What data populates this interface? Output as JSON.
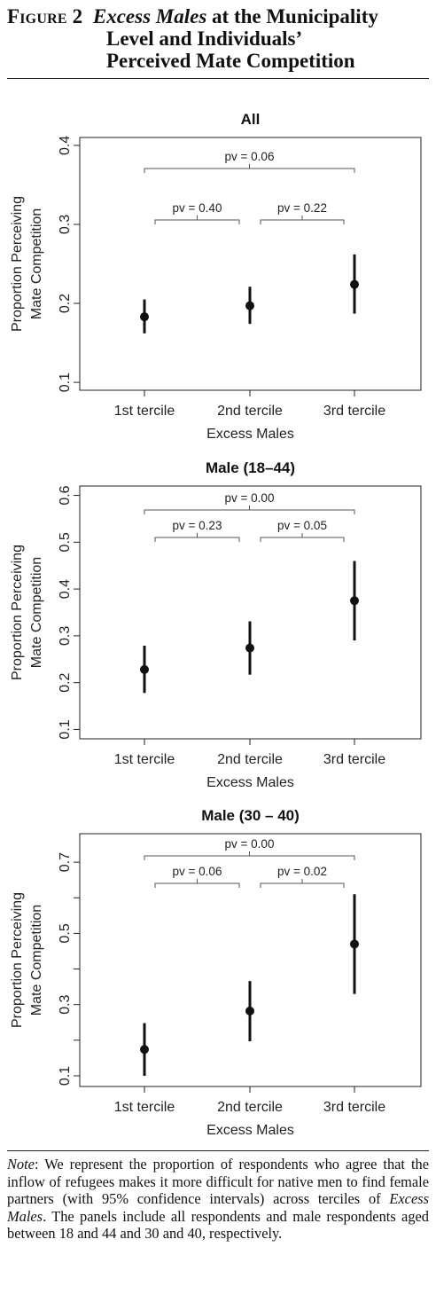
{
  "figure": {
    "number": "Figure 2",
    "title_italic": "Excess Males",
    "title_line1_rest": "at the Municipality",
    "title_line2": "Level and Individuals’",
    "title_line3": "Perceived Mate Competition"
  },
  "note": {
    "label": "Note",
    "text_part1": ": We represent the proportion of respondents who agree that the inflow of refugees makes it more dif­ficult for native men to find female partners (with 95% confidence intervals) across terciles of ",
    "text_italic": "Excess Males",
    "text_part2": ". The panels include all respondents and male re­spondents aged between 18 and 44 and 30 and 40, respectively."
  },
  "chart_data": [
    {
      "type": "scatter",
      "title": "All",
      "xlabel": "Excess Males",
      "ylabel": [
        "Proportion Perceiving",
        "Mate Competition"
      ],
      "categories": [
        "1st tercile",
        "2nd tercile",
        "3rd tercile"
      ],
      "values": [
        0.183,
        0.197,
        0.224
      ],
      "ci_lower": [
        0.162,
        0.174,
        0.187
      ],
      "ci_upper": [
        0.205,
        0.221,
        0.262
      ],
      "ylim": [
        0.09,
        0.41
      ],
      "yticks": [
        0.1,
        0.2,
        0.3,
        0.4
      ],
      "ytick_labels": [
        "0.1",
        "0.2",
        "0.3",
        "0.4"
      ],
      "pvalues": [
        {
          "from": 0,
          "to": 2,
          "label": "pv = 0.06"
        },
        {
          "from": 0,
          "to": 1,
          "label": "pv = 0.40"
        },
        {
          "from": 1,
          "to": 2,
          "label": "pv = 0.22"
        }
      ]
    },
    {
      "type": "scatter",
      "title": "Male (18–44)",
      "xlabel": "Excess Males",
      "ylabel": [
        "Proportion Perceiving",
        "Mate Competition"
      ],
      "categories": [
        "1st tercile",
        "2nd tercile",
        "3rd tercile"
      ],
      "values": [
        0.228,
        0.274,
        0.375
      ],
      "ci_lower": [
        0.178,
        0.217,
        0.29
      ],
      "ci_upper": [
        0.279,
        0.331,
        0.46
      ],
      "ylim": [
        0.08,
        0.62
      ],
      "yticks": [
        0.1,
        0.2,
        0.3,
        0.4,
        0.5,
        0.6
      ],
      "ytick_labels": [
        "0.1",
        "0.2",
        "0.3",
        "0.4",
        "0.5",
        "0.6"
      ],
      "pvalues": [
        {
          "from": 0,
          "to": 2,
          "label": "pv = 0.00"
        },
        {
          "from": 0,
          "to": 1,
          "label": "pv = 0.23"
        },
        {
          "from": 1,
          "to": 2,
          "label": "pv = 0.05"
        }
      ]
    },
    {
      "type": "scatter",
      "title": "Male (30 – 40)",
      "xlabel": "Excess Males",
      "ylabel": [
        "Proportion Perceiving",
        "Mate Competition"
      ],
      "categories": [
        "1st tercile",
        "2nd tercile",
        "3rd tercile"
      ],
      "values": [
        0.174,
        0.282,
        0.47
      ],
      "ci_lower": [
        0.1,
        0.197,
        0.33
      ],
      "ci_upper": [
        0.248,
        0.366,
        0.61
      ],
      "ylim": [
        0.07,
        0.78
      ],
      "yticks": [
        0.1,
        0.2,
        0.3,
        0.4,
        0.5,
        0.6,
        0.7
      ],
      "ytick_labels": [
        "0.1",
        "",
        "0.3",
        "",
        "0.5",
        "",
        "0.7"
      ],
      "pvalues": [
        {
          "from": 0,
          "to": 2,
          "label": "pv = 0.00"
        },
        {
          "from": 0,
          "to": 1,
          "label": "pv = 0.06"
        },
        {
          "from": 1,
          "to": 2,
          "label": "pv = 0.02"
        }
      ]
    }
  ]
}
